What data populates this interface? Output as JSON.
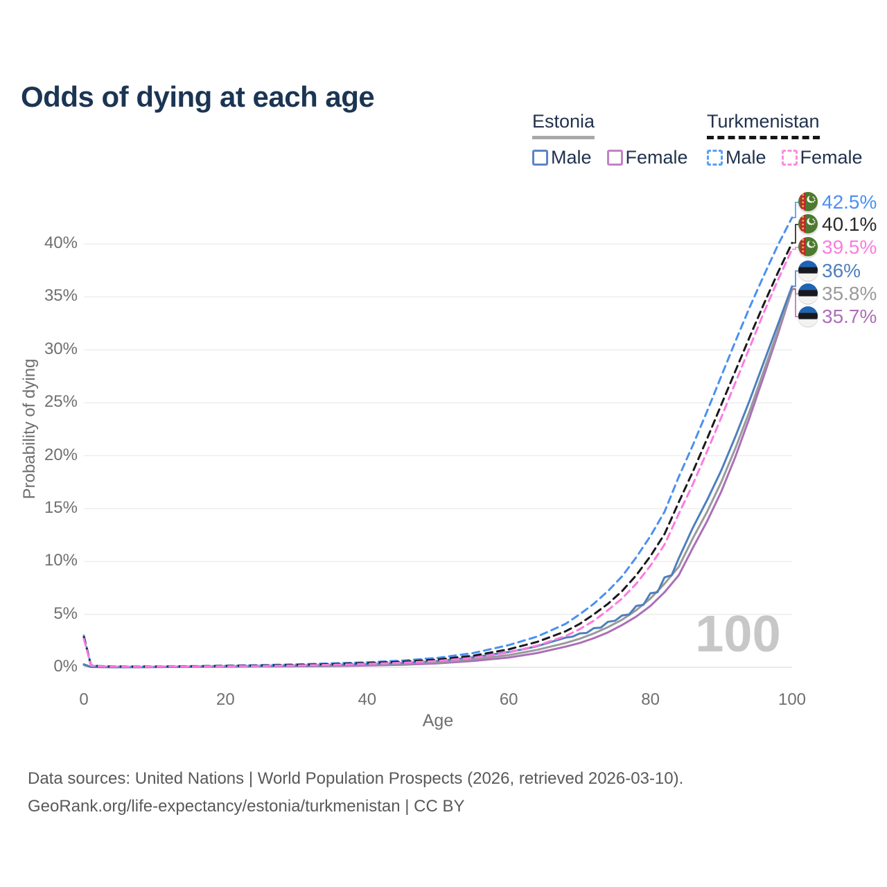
{
  "title": "Odds of dying at each age",
  "legend": {
    "groups": [
      {
        "name": "Estonia",
        "underline": "solid",
        "items": [
          {
            "label": "Male",
            "box_color": "#5b84c4",
            "dashed": false
          },
          {
            "label": "Female",
            "box_color": "#c083c4",
            "dashed": false
          }
        ]
      },
      {
        "name": "Turkmenistan",
        "underline": "dashed",
        "items": [
          {
            "label": "Male",
            "box_color": "#55a0f6",
            "dashed": true
          },
          {
            "label": "Female",
            "box_color": "#fc8be0",
            "dashed": true
          }
        ]
      }
    ]
  },
  "chart_data": {
    "type": "line",
    "title": "Odds of dying at each age",
    "xlabel": "Age",
    "ylabel": "Probability of dying",
    "xlim": [
      0,
      100
    ],
    "ylim": [
      0,
      44
    ],
    "x_ticks": [
      "0",
      "20",
      "40",
      "60",
      "80",
      "100"
    ],
    "x_tick_values": [
      0,
      20,
      40,
      60,
      80,
      100
    ],
    "y_ticks": [
      "0%",
      "5%",
      "10%",
      "15%",
      "20%",
      "25%",
      "30%",
      "35%",
      "40%"
    ],
    "y_tick_values": [
      0,
      5,
      10,
      15,
      20,
      25,
      30,
      35,
      40
    ],
    "grid": "horizontal-only",
    "legend_position": "top-right",
    "hover_age": "100",
    "series": [
      {
        "id": "estonia-female",
        "name": "Estonia Female",
        "color": "#ab6fb8",
        "dash": false,
        "end_label": "35.7%",
        "label_color": "#ab6fb8",
        "flag": "estonia",
        "points": [
          [
            0,
            0.22
          ],
          [
            1,
            0.03
          ],
          [
            4,
            0.015
          ],
          [
            8,
            0.015
          ],
          [
            12,
            0.03
          ],
          [
            16,
            0.04
          ],
          [
            20,
            0.05
          ],
          [
            25,
            0.07
          ],
          [
            30,
            0.09
          ],
          [
            35,
            0.12
          ],
          [
            40,
            0.17
          ],
          [
            45,
            0.25
          ],
          [
            50,
            0.38
          ],
          [
            55,
            0.6
          ],
          [
            60,
            0.92
          ],
          [
            64,
            1.35
          ],
          [
            68,
            1.95
          ],
          [
            70,
            2.3
          ],
          [
            72,
            2.75
          ],
          [
            74,
            3.3
          ],
          [
            76,
            4.0
          ],
          [
            78,
            4.8
          ],
          [
            80,
            5.8
          ],
          [
            82,
            7.1
          ],
          [
            84,
            8.7
          ],
          [
            86,
            11.3
          ],
          [
            88,
            13.8
          ],
          [
            90,
            16.6
          ],
          [
            92,
            19.9
          ],
          [
            94,
            23.6
          ],
          [
            96,
            27.5
          ],
          [
            98,
            31.5
          ],
          [
            100,
            35.7
          ]
        ]
      },
      {
        "id": "estonia-average",
        "name": "Estonia",
        "color": "#9a9a9a",
        "dash": false,
        "end_label": "35.8%",
        "label_color": "#9a9a9a",
        "flag": "estonia",
        "points": [
          [
            0,
            0.25
          ],
          [
            1,
            0.035
          ],
          [
            4,
            0.018
          ],
          [
            8,
            0.018
          ],
          [
            12,
            0.035
          ],
          [
            16,
            0.06
          ],
          [
            20,
            0.08
          ],
          [
            25,
            0.1
          ],
          [
            30,
            0.13
          ],
          [
            35,
            0.17
          ],
          [
            40,
            0.24
          ],
          [
            45,
            0.34
          ],
          [
            50,
            0.5
          ],
          [
            55,
            0.78
          ],
          [
            60,
            1.15
          ],
          [
            64,
            1.65
          ],
          [
            68,
            2.3
          ],
          [
            70,
            2.7
          ],
          [
            72,
            3.2
          ],
          [
            74,
            3.8
          ],
          [
            76,
            4.5
          ],
          [
            78,
            5.4
          ],
          [
            80,
            6.5
          ],
          [
            82,
            7.9
          ],
          [
            84,
            9.5
          ],
          [
            86,
            12.2
          ],
          [
            88,
            14.7
          ],
          [
            90,
            17.5
          ],
          [
            92,
            20.7
          ],
          [
            94,
            24.2
          ],
          [
            96,
            28.0
          ],
          [
            98,
            31.8
          ],
          [
            100,
            35.8
          ]
        ]
      },
      {
        "id": "estonia-male",
        "name": "Estonia Male",
        "color": "#4e7fbe",
        "dash": false,
        "end_label": "36%",
        "label_color": "#4e7fbe",
        "flag": "estonia",
        "points": [
          [
            0,
            0.28
          ],
          [
            1,
            0.04
          ],
          [
            4,
            0.02
          ],
          [
            8,
            0.02
          ],
          [
            12,
            0.04
          ],
          [
            16,
            0.07
          ],
          [
            20,
            0.1
          ],
          [
            25,
            0.13
          ],
          [
            30,
            0.17
          ],
          [
            35,
            0.22
          ],
          [
            40,
            0.3
          ],
          [
            45,
            0.42
          ],
          [
            50,
            0.6
          ],
          [
            55,
            0.95
          ],
          [
            60,
            1.45
          ],
          [
            62,
            1.7
          ],
          [
            64,
            2.0
          ],
          [
            66,
            2.4
          ],
          [
            68,
            2.8
          ],
          [
            69,
            2.9
          ],
          [
            70,
            3.2
          ],
          [
            71,
            3.25
          ],
          [
            72,
            3.7
          ],
          [
            73,
            3.75
          ],
          [
            74,
            4.3
          ],
          [
            75,
            4.4
          ],
          [
            76,
            4.9
          ],
          [
            77,
            5.0
          ],
          [
            78,
            5.8
          ],
          [
            79,
            5.9
          ],
          [
            80,
            7.0
          ],
          [
            81,
            7.1
          ],
          [
            82,
            8.5
          ],
          [
            83,
            8.7
          ],
          [
            84,
            10.3
          ],
          [
            86,
            13.2
          ],
          [
            88,
            15.8
          ],
          [
            90,
            18.6
          ],
          [
            92,
            21.8
          ],
          [
            94,
            25.2
          ],
          [
            96,
            28.8
          ],
          [
            98,
            32.4
          ],
          [
            100,
            36.0
          ]
        ]
      },
      {
        "id": "turkmenistan-male",
        "name": "Turkmenistan Male",
        "color": "#4a90f2",
        "dash": true,
        "end_label": "42.5%",
        "label_color": "#4a90f2",
        "flag": "turkmenistan",
        "points": [
          [
            0,
            3.0
          ],
          [
            1,
            0.22
          ],
          [
            2,
            0.12
          ],
          [
            4,
            0.09
          ],
          [
            8,
            0.08
          ],
          [
            12,
            0.09
          ],
          [
            16,
            0.12
          ],
          [
            20,
            0.16
          ],
          [
            25,
            0.21
          ],
          [
            30,
            0.28
          ],
          [
            35,
            0.37
          ],
          [
            40,
            0.48
          ],
          [
            45,
            0.64
          ],
          [
            50,
            0.9
          ],
          [
            55,
            1.35
          ],
          [
            60,
            2.1
          ],
          [
            64,
            2.9
          ],
          [
            68,
            4.1
          ],
          [
            70,
            5.0
          ],
          [
            72,
            6.0
          ],
          [
            74,
            7.2
          ],
          [
            76,
            8.6
          ],
          [
            78,
            10.4
          ],
          [
            80,
            12.4
          ],
          [
            82,
            14.7
          ],
          [
            84,
            18.0
          ],
          [
            86,
            21.0
          ],
          [
            88,
            24.2
          ],
          [
            90,
            27.5
          ],
          [
            92,
            30.8
          ],
          [
            94,
            34.0
          ],
          [
            96,
            37.0
          ],
          [
            98,
            39.9
          ],
          [
            100,
            42.5
          ]
        ]
      },
      {
        "id": "turkmenistan-average",
        "name": "Turkmenistan",
        "color": "#1a1a1a",
        "dash": true,
        "end_label": "40.1%",
        "label_color": "#2b2b2b",
        "flag": "turkmenistan",
        "points": [
          [
            0,
            2.85
          ],
          [
            1,
            0.2
          ],
          [
            2,
            0.11
          ],
          [
            4,
            0.08
          ],
          [
            8,
            0.07
          ],
          [
            12,
            0.08
          ],
          [
            16,
            0.1
          ],
          [
            20,
            0.13
          ],
          [
            25,
            0.17
          ],
          [
            30,
            0.23
          ],
          [
            35,
            0.3
          ],
          [
            40,
            0.4
          ],
          [
            45,
            0.53
          ],
          [
            50,
            0.74
          ],
          [
            55,
            1.1
          ],
          [
            60,
            1.7
          ],
          [
            64,
            2.4
          ],
          [
            68,
            3.4
          ],
          [
            70,
            4.1
          ],
          [
            72,
            5.0
          ],
          [
            74,
            6.0
          ],
          [
            76,
            7.2
          ],
          [
            78,
            8.7
          ],
          [
            80,
            10.5
          ],
          [
            82,
            12.6
          ],
          [
            84,
            15.6
          ],
          [
            86,
            18.5
          ],
          [
            88,
            21.6
          ],
          [
            90,
            24.8
          ],
          [
            92,
            28.0
          ],
          [
            94,
            31.2
          ],
          [
            96,
            34.3
          ],
          [
            98,
            37.3
          ],
          [
            100,
            40.1
          ]
        ]
      },
      {
        "id": "turkmenistan-female",
        "name": "Turkmenistan Female",
        "color": "#fb7be0",
        "dash": true,
        "end_label": "39.5%",
        "label_color": "#fb7be0",
        "flag": "turkmenistan",
        "points": [
          [
            0,
            2.7
          ],
          [
            1,
            0.18
          ],
          [
            2,
            0.1
          ],
          [
            4,
            0.07
          ],
          [
            8,
            0.06
          ],
          [
            12,
            0.07
          ],
          [
            16,
            0.08
          ],
          [
            20,
            0.1
          ],
          [
            25,
            0.13
          ],
          [
            30,
            0.18
          ],
          [
            35,
            0.24
          ],
          [
            40,
            0.32
          ],
          [
            45,
            0.43
          ],
          [
            50,
            0.6
          ],
          [
            55,
            0.9
          ],
          [
            60,
            1.4
          ],
          [
            64,
            2.05
          ],
          [
            68,
            2.95
          ],
          [
            70,
            3.6
          ],
          [
            72,
            4.4
          ],
          [
            74,
            5.4
          ],
          [
            76,
            6.5
          ],
          [
            78,
            7.9
          ],
          [
            80,
            9.6
          ],
          [
            82,
            11.6
          ],
          [
            84,
            14.5
          ],
          [
            86,
            17.3
          ],
          [
            88,
            20.4
          ],
          [
            90,
            23.6
          ],
          [
            92,
            26.9
          ],
          [
            94,
            30.2
          ],
          [
            96,
            33.5
          ],
          [
            98,
            36.6
          ],
          [
            100,
            39.5
          ]
        ]
      }
    ]
  },
  "footer": {
    "line1": "Data sources: United Nations | World Population Prospects (2026, retrieved 2026-03-10).",
    "line2": "GeoRank.org/life-expectancy/estonia/turkmenistan | CC BY"
  }
}
